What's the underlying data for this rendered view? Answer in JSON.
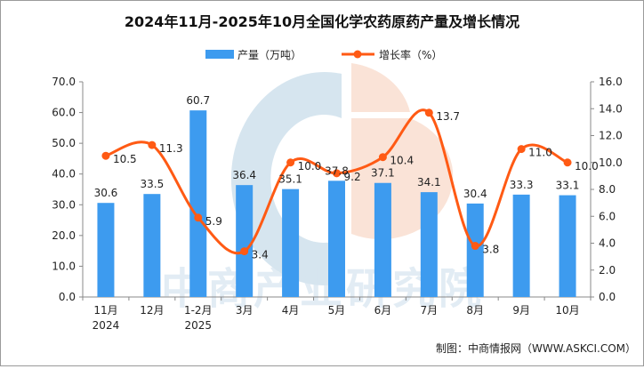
{
  "chart_data": {
    "type": "bar+line",
    "title": "2024年11月-2025年10月全国化学农药原药产量及增长情况",
    "categories": [
      [
        "11月",
        "2024"
      ],
      [
        "12月",
        ""
      ],
      [
        "1-2月",
        "2025"
      ],
      [
        "3月",
        ""
      ],
      [
        "4月",
        ""
      ],
      [
        "5月",
        ""
      ],
      [
        "6月",
        ""
      ],
      [
        "7月",
        ""
      ],
      [
        "8月",
        ""
      ],
      [
        "9月",
        ""
      ],
      [
        "10月",
        ""
      ]
    ],
    "series": [
      {
        "name": "产量（万吨）",
        "type": "bar",
        "axis": "left",
        "color": "#3d9bef",
        "values": [
          30.6,
          33.5,
          60.7,
          36.4,
          35.1,
          37.8,
          37.1,
          34.1,
          30.4,
          33.3,
          33.1
        ],
        "labels": [
          "30.6",
          "33.5",
          "60.7",
          "36.4",
          "35.1",
          "37.8",
          "37.1",
          "34.1",
          "30.4",
          "33.3",
          "33.1"
        ]
      },
      {
        "name": "增长率（%）",
        "type": "line",
        "axis": "right",
        "color": "#ff5a14",
        "values": [
          10.5,
          11.3,
          5.9,
          3.4,
          10.0,
          9.2,
          10.4,
          13.7,
          3.8,
          11.0,
          10.0
        ],
        "labels": [
          "10.5",
          "11.3",
          "5.9",
          "3.4",
          "10.0",
          "9.2",
          "10.4",
          "13.7",
          "3.8",
          "11.0",
          "10.0"
        ]
      }
    ],
    "y_left": {
      "range": [
        0,
        70
      ],
      "ticks": [
        "0.0",
        "10.0",
        "20.0",
        "30.0",
        "40.0",
        "50.0",
        "60.0",
        "70.0"
      ]
    },
    "y_right": {
      "range": [
        0,
        16
      ],
      "ticks": [
        "0.0",
        "2.0",
        "4.0",
        "6.0",
        "8.0",
        "10.0",
        "12.0",
        "14.0",
        "16.0"
      ]
    },
    "legend": "top-center",
    "grid": false
  },
  "source": "制图：中商情报网（WWW.ASKCI.COM）",
  "watermark": "中商产业研究院"
}
